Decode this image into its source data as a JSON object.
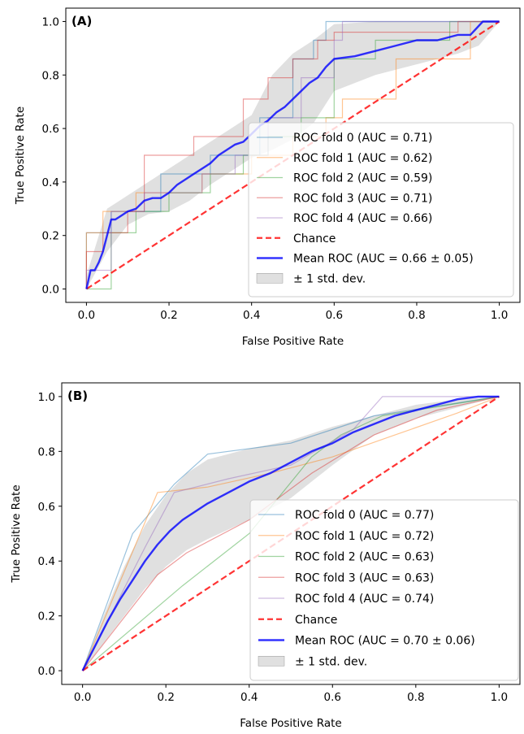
{
  "chart_data": [
    {
      "type": "line",
      "panel_label": "(A)",
      "xlabel": "False Positive Rate",
      "ylabel": "True Positive Rate",
      "xlim": [
        -0.05,
        1.05
      ],
      "ylim": [
        -0.05,
        1.05
      ],
      "xticks": [
        "0.0",
        "0.2",
        "0.4",
        "0.6",
        "0.8",
        "1.0"
      ],
      "yticks": [
        "0.0",
        "0.2",
        "0.4",
        "0.6",
        "0.8",
        "1.0"
      ],
      "legend_position": "lower-right",
      "folds": [
        {
          "name": "ROC fold 0 (AUC = 0.71)",
          "color": "#1f77b4",
          "x": [
            0,
            0,
            0.06,
            0.06,
            0.18,
            0.18,
            0.3,
            0.3,
            0.42,
            0.42,
            0.5,
            0.5,
            0.55,
            0.55,
            0.58,
            0.58,
            0.62,
            0.62,
            1
          ],
          "y": [
            0,
            0.21,
            0.21,
            0.29,
            0.29,
            0.43,
            0.43,
            0.5,
            0.5,
            0.64,
            0.64,
            0.86,
            0.86,
            0.93,
            0.93,
            1.0,
            1.0,
            1.0,
            1.0
          ]
        },
        {
          "name": "ROC fold 1 (AUC = 0.62)",
          "color": "#ff7f0e",
          "x": [
            0,
            0,
            0.04,
            0.04,
            0.12,
            0.12,
            0.28,
            0.28,
            0.4,
            0.4,
            0.5,
            0.5,
            0.58,
            0.58,
            0.62,
            0.62,
            0.75,
            0.75,
            0.93,
            0.93,
            1
          ],
          "y": [
            0,
            0.21,
            0.21,
            0.29,
            0.29,
            0.36,
            0.36,
            0.43,
            0.43,
            0.5,
            0.5,
            0.57,
            0.57,
            0.64,
            0.64,
            0.71,
            0.71,
            0.86,
            0.86,
            1.0,
            1.0
          ]
        },
        {
          "name": "ROC fold 2 (AUC = 0.59)",
          "color": "#2ca02c",
          "x": [
            0,
            0,
            0.06,
            0.06,
            0.12,
            0.12,
            0.2,
            0.2,
            0.3,
            0.3,
            0.38,
            0.38,
            0.44,
            0.44,
            0.52,
            0.52,
            0.6,
            0.6,
            0.7,
            0.7,
            0.88,
            0.88,
            1
          ],
          "y": [
            0,
            0.0,
            0.0,
            0.21,
            0.21,
            0.29,
            0.29,
            0.36,
            0.36,
            0.43,
            0.43,
            0.5,
            0.5,
            0.57,
            0.57,
            0.64,
            0.64,
            0.86,
            0.86,
            0.93,
            0.93,
            1.0,
            1.0
          ]
        },
        {
          "name": "ROC fold 3 (AUC = 0.71)",
          "color": "#d62728",
          "x": [
            0,
            0,
            0.04,
            0.04,
            0.1,
            0.1,
            0.14,
            0.14,
            0.26,
            0.26,
            0.38,
            0.38,
            0.44,
            0.44,
            0.5,
            0.5,
            0.56,
            0.56,
            0.6,
            0.6,
            0.9,
            0.9,
            1
          ],
          "y": [
            0,
            0.14,
            0.14,
            0.21,
            0.21,
            0.29,
            0.29,
            0.5,
            0.5,
            0.57,
            0.57,
            0.71,
            0.71,
            0.79,
            0.79,
            0.86,
            0.86,
            0.93,
            0.93,
            0.96,
            0.96,
            1.0,
            1.0
          ]
        },
        {
          "name": "ROC fold 4 (AUC = 0.66)",
          "color": "#9467bd",
          "x": [
            0,
            0,
            0.06,
            0.06,
            0.14,
            0.14,
            0.28,
            0.28,
            0.36,
            0.36,
            0.44,
            0.44,
            0.52,
            0.52,
            0.6,
            0.6,
            0.62,
            0.62,
            1
          ],
          "y": [
            0,
            0.07,
            0.07,
            0.29,
            0.29,
            0.36,
            0.36,
            0.43,
            0.43,
            0.5,
            0.5,
            0.64,
            0.64,
            0.79,
            0.79,
            0.93,
            0.93,
            1.0,
            1.0
          ]
        }
      ],
      "chance": {
        "name": "Chance",
        "color": "#ff0000",
        "x": [
          0,
          1
        ],
        "y": [
          0,
          1
        ]
      },
      "mean": {
        "name": "Mean ROC (AUC = 0.66 ± 0.05)",
        "color": "#0000ff",
        "x": [
          0,
          0.01,
          0.02,
          0.03,
          0.04,
          0.05,
          0.06,
          0.07,
          0.08,
          0.1,
          0.12,
          0.14,
          0.16,
          0.18,
          0.2,
          0.22,
          0.24,
          0.26,
          0.28,
          0.3,
          0.32,
          0.34,
          0.36,
          0.38,
          0.4,
          0.42,
          0.44,
          0.46,
          0.48,
          0.5,
          0.52,
          0.54,
          0.56,
          0.58,
          0.6,
          0.65,
          0.7,
          0.75,
          0.8,
          0.85,
          0.9,
          0.93,
          0.96,
          1.0
        ],
        "y": [
          0,
          0.07,
          0.07,
          0.1,
          0.14,
          0.2,
          0.26,
          0.26,
          0.27,
          0.29,
          0.3,
          0.33,
          0.34,
          0.34,
          0.36,
          0.39,
          0.41,
          0.43,
          0.45,
          0.47,
          0.5,
          0.52,
          0.54,
          0.55,
          0.58,
          0.61,
          0.63,
          0.66,
          0.68,
          0.71,
          0.74,
          0.77,
          0.79,
          0.83,
          0.86,
          0.87,
          0.89,
          0.91,
          0.93,
          0.93,
          0.95,
          0.95,
          1.0,
          1.0
        ]
      },
      "std_band": {
        "name": "± 1 std. dev.",
        "color": "#bbbbbb",
        "x": [
          0,
          0.05,
          0.1,
          0.15,
          0.2,
          0.25,
          0.3,
          0.35,
          0.4,
          0.45,
          0.5,
          0.55,
          0.6,
          0.7,
          0.8,
          0.9,
          0.95,
          1.0
        ],
        "upper": [
          0.05,
          0.3,
          0.35,
          0.4,
          0.45,
          0.5,
          0.55,
          0.6,
          0.65,
          0.8,
          0.88,
          0.93,
          0.99,
          1.0,
          1.0,
          1.0,
          1.0,
          1.0
        ],
        "lower": [
          0.0,
          0.14,
          0.24,
          0.28,
          0.29,
          0.33,
          0.39,
          0.44,
          0.49,
          0.52,
          0.56,
          0.62,
          0.74,
          0.8,
          0.84,
          0.88,
          0.91,
          1.0
        ]
      }
    },
    {
      "type": "line",
      "panel_label": "(B)",
      "xlabel": "False Positive Rate",
      "ylabel": "True Positive Rate",
      "xlim": [
        -0.05,
        1.05
      ],
      "ylim": [
        -0.05,
        1.05
      ],
      "xticks": [
        "0.0",
        "0.2",
        "0.4",
        "0.6",
        "0.8",
        "1.0"
      ],
      "yticks": [
        "0.0",
        "0.2",
        "0.4",
        "0.6",
        "0.8",
        "1.0"
      ],
      "legend_position": "lower-right",
      "folds": [
        {
          "name": "ROC fold 0 (AUC = 0.77)",
          "color": "#1f77b4",
          "x": [
            0,
            0.12,
            0.22,
            0.3,
            0.5,
            0.62,
            0.7,
            1.0
          ],
          "y": [
            0,
            0.5,
            0.68,
            0.79,
            0.83,
            0.89,
            0.93,
            1.0
          ]
        },
        {
          "name": "ROC fold 1 (AUC = 0.72)",
          "color": "#ff7f0e",
          "x": [
            0,
            0.18,
            0.3,
            0.45,
            0.6,
            0.75,
            0.9,
            1.0
          ],
          "y": [
            0,
            0.65,
            0.67,
            0.72,
            0.78,
            0.86,
            0.94,
            1.0
          ]
        },
        {
          "name": "ROC fold 2 (AUC = 0.63)",
          "color": "#2ca02c",
          "x": [
            0,
            0.24,
            0.4,
            0.55,
            0.62,
            0.72,
            1.0
          ],
          "y": [
            0,
            0.31,
            0.5,
            0.78,
            0.86,
            0.93,
            1.0
          ]
        },
        {
          "name": "ROC fold 3 (AUC = 0.63)",
          "color": "#d62728",
          "x": [
            0,
            0.18,
            0.25,
            0.4,
            0.55,
            0.7,
            0.85,
            1.0
          ],
          "y": [
            0,
            0.35,
            0.43,
            0.55,
            0.72,
            0.86,
            0.95,
            1.0
          ]
        },
        {
          "name": "ROC fold 4 (AUC = 0.74)",
          "color": "#9467bd",
          "x": [
            0,
            0.15,
            0.22,
            0.35,
            0.5,
            0.65,
            0.72,
            1.0
          ],
          "y": [
            0,
            0.45,
            0.65,
            0.7,
            0.75,
            0.88,
            1.0,
            1.0
          ]
        }
      ],
      "chance": {
        "name": "Chance",
        "color": "#ff0000",
        "x": [
          0,
          1
        ],
        "y": [
          0,
          1
        ]
      },
      "mean": {
        "name": "Mean ROC (AUC = 0.70 ± 0.06)",
        "color": "#0000ff",
        "x": [
          0,
          0.03,
          0.06,
          0.09,
          0.12,
          0.15,
          0.18,
          0.21,
          0.24,
          0.27,
          0.3,
          0.35,
          0.4,
          0.45,
          0.5,
          0.55,
          0.6,
          0.65,
          0.7,
          0.75,
          0.8,
          0.85,
          0.9,
          0.95,
          1.0
        ],
        "y": [
          0,
          0.09,
          0.18,
          0.26,
          0.33,
          0.4,
          0.46,
          0.51,
          0.55,
          0.58,
          0.61,
          0.65,
          0.69,
          0.72,
          0.76,
          0.8,
          0.83,
          0.87,
          0.9,
          0.93,
          0.95,
          0.97,
          0.99,
          1.0,
          1.0
        ]
      },
      "std_band": {
        "name": "± 1 std. dev.",
        "color": "#bbbbbb",
        "x": [
          0,
          0.05,
          0.1,
          0.15,
          0.2,
          0.25,
          0.3,
          0.4,
          0.5,
          0.6,
          0.7,
          0.8,
          0.9,
          1.0
        ],
        "upper": [
          0,
          0.2,
          0.38,
          0.53,
          0.64,
          0.72,
          0.77,
          0.81,
          0.84,
          0.89,
          0.93,
          0.97,
          0.99,
          1.0
        ],
        "lower": [
          0,
          0.1,
          0.2,
          0.3,
          0.38,
          0.44,
          0.48,
          0.55,
          0.63,
          0.75,
          0.86,
          0.92,
          0.96,
          1.0
        ]
      }
    }
  ]
}
